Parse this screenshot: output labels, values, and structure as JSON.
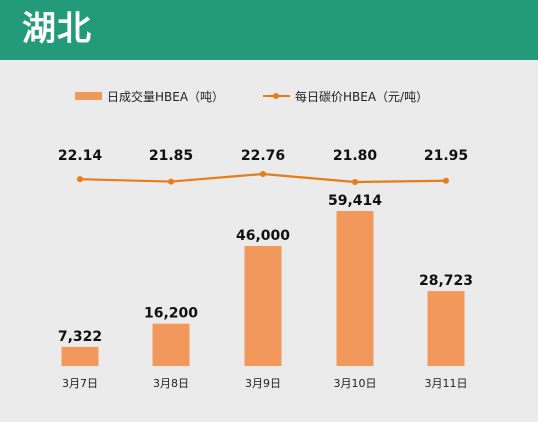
{
  "header": {
    "title": "湖北"
  },
  "colors": {
    "header_bg": "#239a78",
    "page_bg": "#ebebeb",
    "bar": "#f2985a",
    "line": "#e77c18"
  },
  "legend": {
    "bar_label": "日成交量HBEA（吨）",
    "line_label": "每日碳价HBEA（元/吨）"
  },
  "chart_data": {
    "type": "bar",
    "categories": [
      "3月7日",
      "3月8日",
      "3月9日",
      "3月10日",
      "3月11日"
    ],
    "series": [
      {
        "name": "日成交量HBEA（吨）",
        "type": "bar",
        "values": [
          7322,
          16200,
          46000,
          59414,
          28723
        ],
        "labels": [
          "7,322",
          "16,200",
          "46,000",
          "59,414",
          "28,723"
        ]
      },
      {
        "name": "每日碳价HBEA（元/吨）",
        "type": "line",
        "values": [
          22.14,
          21.85,
          22.76,
          21.8,
          21.95
        ],
        "labels": [
          "22.14",
          "21.85",
          "22.76",
          "21.80",
          "21.95"
        ]
      }
    ],
    "legend_position": "top",
    "grid": false
  }
}
